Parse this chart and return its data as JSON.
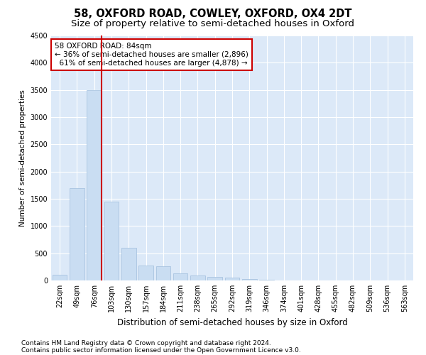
{
  "title": "58, OXFORD ROAD, COWLEY, OXFORD, OX4 2DT",
  "subtitle": "Size of property relative to semi-detached houses in Oxford",
  "xlabel": "Distribution of semi-detached houses by size in Oxford",
  "ylabel": "Number of semi-detached properties",
  "categories": [
    "22sqm",
    "49sqm",
    "76sqm",
    "103sqm",
    "130sqm",
    "157sqm",
    "184sqm",
    "211sqm",
    "238sqm",
    "265sqm",
    "292sqm",
    "319sqm",
    "346sqm",
    "374sqm",
    "401sqm",
    "428sqm",
    "455sqm",
    "482sqm",
    "509sqm",
    "536sqm",
    "563sqm"
  ],
  "values": [
    110,
    1700,
    3500,
    1450,
    600,
    270,
    260,
    135,
    85,
    65,
    50,
    25,
    10,
    5,
    2,
    1,
    1,
    1,
    1,
    1,
    1
  ],
  "bar_color": "#c9ddf2",
  "bar_edge_color": "#a0bedd",
  "property_bin_index": 2,
  "property_sqm": 84,
  "pct_smaller": 36,
  "count_smaller": 2896,
  "pct_larger": 61,
  "count_larger": 4878,
  "annotation_box_color": "#ffffff",
  "annotation_box_edge": "#cc0000",
  "line_color": "#cc0000",
  "ylim": [
    0,
    4500
  ],
  "yticks": [
    0,
    500,
    1000,
    1500,
    2000,
    2500,
    3000,
    3500,
    4000,
    4500
  ],
  "footer_line1": "Contains HM Land Registry data © Crown copyright and database right 2024.",
  "footer_line2": "Contains public sector information licensed under the Open Government Licence v3.0.",
  "bg_color": "#dce9f8",
  "fig_bg_color": "#ffffff",
  "title_fontsize": 10.5,
  "subtitle_fontsize": 9.5,
  "xlabel_fontsize": 8.5,
  "ylabel_fontsize": 7.5,
  "tick_fontsize": 7,
  "annotation_fontsize": 7.5,
  "footer_fontsize": 6.5
}
